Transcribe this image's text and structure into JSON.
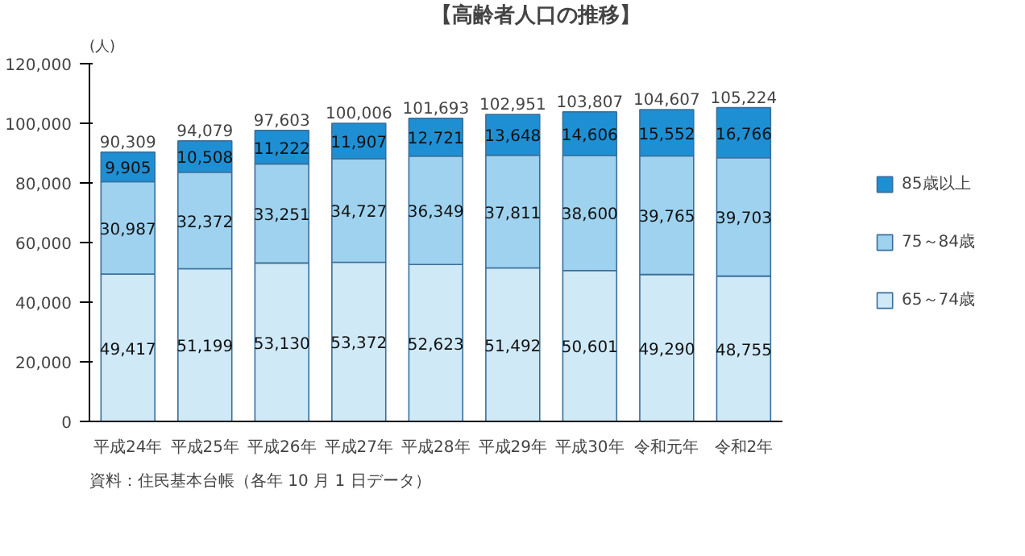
{
  "chart_data": {
    "type": "bar",
    "stacked": true,
    "title": "【高齢者人口の推移】",
    "ylabel": "(人)",
    "categories": [
      "平成24年",
      "平成25年",
      "平成26年",
      "平成27年",
      "平成28年",
      "平成29年",
      "平成30年",
      "令和元年",
      "令和2年"
    ],
    "series": [
      {
        "name": "65～74歳",
        "color": "#cfe9f7",
        "values": [
          49417,
          51199,
          53130,
          53372,
          52623,
          51492,
          50601,
          49290,
          48755
        ],
        "value_labels": [
          "49,417",
          "51,199",
          "53,130",
          "53,372",
          "52,623",
          "51,492",
          "50,601",
          "49,290",
          "48,755"
        ]
      },
      {
        "name": "75～84歳",
        "color": "#9ed2ef",
        "values": [
          30987,
          32372,
          33251,
          34727,
          36349,
          37811,
          38600,
          39765,
          39703
        ],
        "value_labels": [
          "30,987",
          "32,372",
          "33,251",
          "34,727",
          "36,349",
          "37,811",
          "38,600",
          "39,765",
          "39,703"
        ]
      },
      {
        "name": "85歳以上",
        "color": "#1f8fd3",
        "values": [
          9905,
          10508,
          11222,
          11907,
          12721,
          13648,
          14606,
          15552,
          16766
        ],
        "value_labels": [
          "9,905",
          "10,508",
          "11,222",
          "11,907",
          "12,721",
          "13,648",
          "14,606",
          "15,552",
          "16,766"
        ]
      }
    ],
    "totals": [
      "90,309",
      "94,079",
      "97,603",
      "100,006",
      "101,693",
      "102,951",
      "103,807",
      "104,607",
      "105,224"
    ],
    "data_labels": true,
    "ylim": [
      0,
      120000
    ],
    "yticks": [
      {
        "value": 0,
        "label": "0"
      },
      {
        "value": 20000,
        "label": "20,000"
      },
      {
        "value": 40000,
        "label": "40,000"
      },
      {
        "value": 60000,
        "label": "60,000"
      },
      {
        "value": 80000,
        "label": "80,000"
      },
      {
        "value": 100000,
        "label": "100,000"
      },
      {
        "value": 120000,
        "label": "120,000"
      }
    ],
    "grid": false,
    "legend": "right",
    "annotations": [
      "資料：住民基本台帳（各年 10 月 1 日データ）"
    ]
  }
}
